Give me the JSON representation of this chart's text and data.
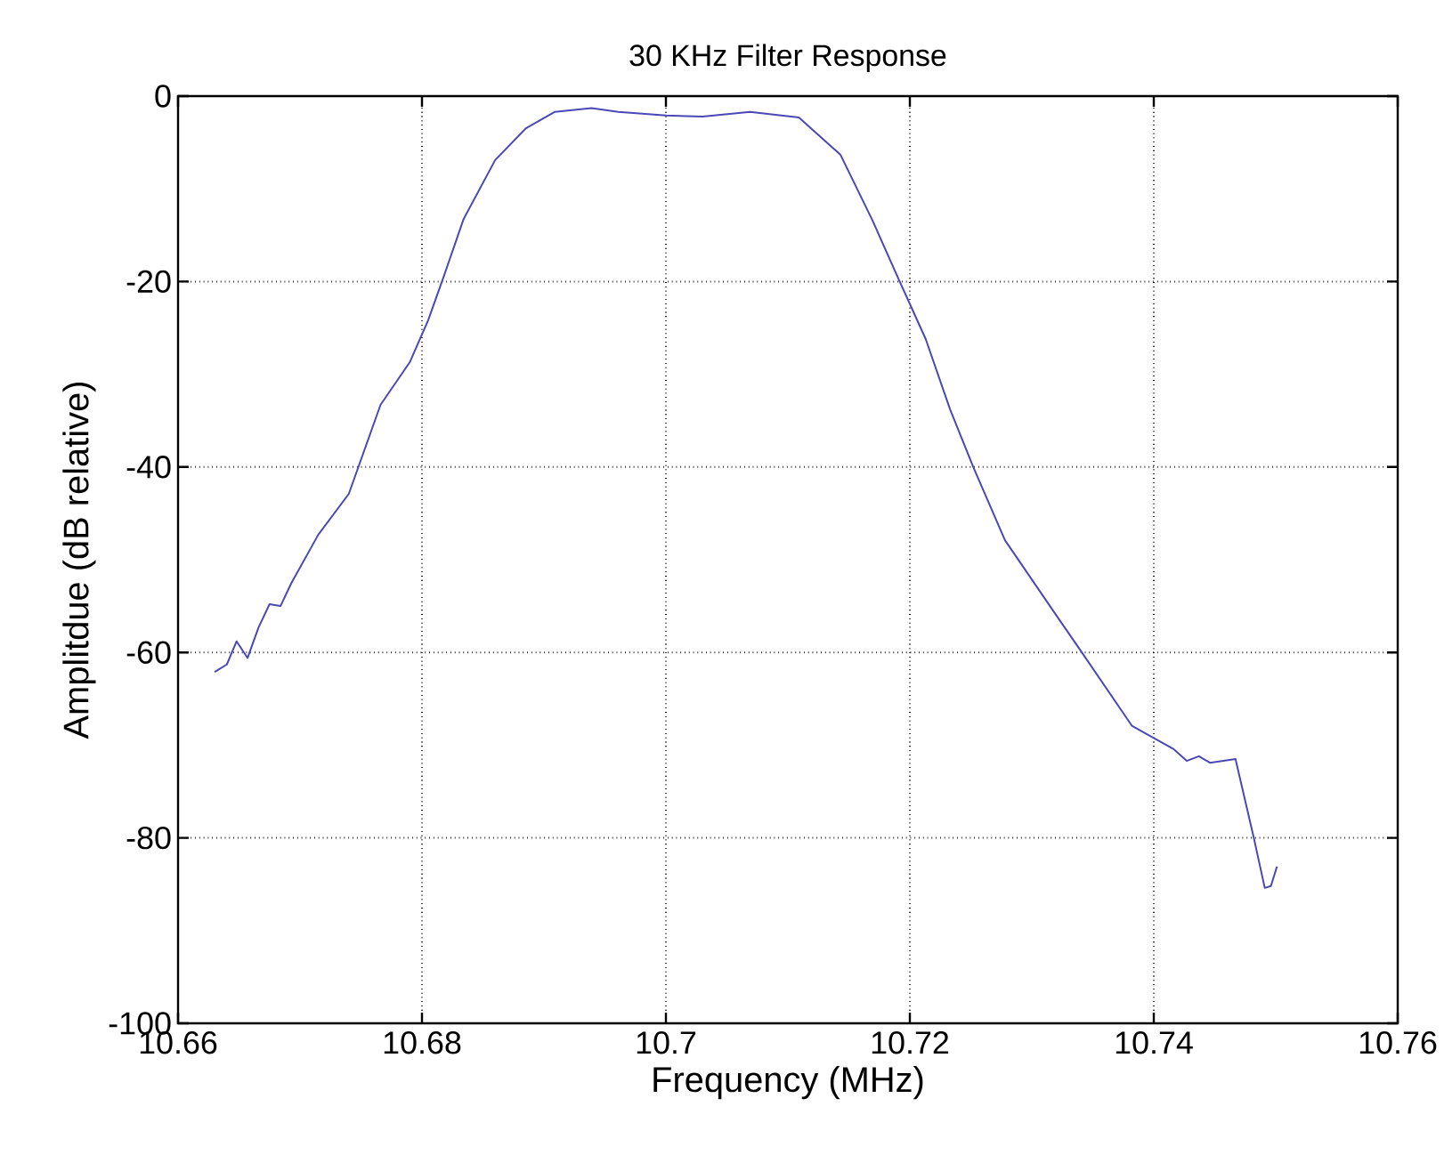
{
  "chart_data": {
    "type": "line",
    "title": "30 KHz Filter Response",
    "xlabel": "Frequency (MHz)",
    "ylabel": "Amplitdue (dB relative)",
    "xlim": [
      10.66,
      10.76
    ],
    "ylim": [
      -100,
      0
    ],
    "xticks": [
      10.66,
      10.68,
      10.7,
      10.72,
      10.74,
      10.76
    ],
    "yticks": [
      -100,
      -80,
      -60,
      -40,
      -20,
      0
    ],
    "grid": true,
    "marker": "none",
    "line_style": "solid",
    "series": [
      {
        "color": "#4a48b4",
        "x": [
          10.663,
          10.664,
          10.6648,
          10.6657,
          10.6666,
          10.6675,
          10.6684,
          10.6693,
          10.6715,
          10.674,
          10.6766,
          10.679,
          10.6805,
          10.6818,
          10.6834,
          10.686,
          10.6885,
          10.6909,
          10.6939,
          10.6961,
          10.7,
          10.703,
          10.7069,
          10.7109,
          10.7143,
          10.7169,
          10.7191,
          10.7213,
          10.7233,
          10.7252,
          10.7278,
          10.7318,
          10.734,
          10.7382,
          10.7416,
          10.7427,
          10.7437,
          10.7446,
          10.7467,
          10.7482,
          10.7491,
          10.7496,
          10.7501
        ],
        "values": [
          -62.1,
          -61.3,
          -58.8,
          -60.6,
          -57.3,
          -54.8,
          -55,
          -52.5,
          -47.3,
          -42.9,
          -33.3,
          -28.7,
          -24.2,
          -19.4,
          -13.3,
          -6.9,
          -3.5,
          -1.7,
          -1.3,
          -1.7,
          -2.1,
          -2.2,
          -1.7,
          -2.3,
          -6.3,
          -13.3,
          -19.8,
          -26.2,
          -33.8,
          -40,
          -47.9,
          -55.6,
          -59.8,
          -67.9,
          -70.4,
          -71.7,
          -71.2,
          -71.9,
          -71.5,
          -80,
          -85.4,
          -85.2,
          -83.1
        ]
      }
    ]
  }
}
